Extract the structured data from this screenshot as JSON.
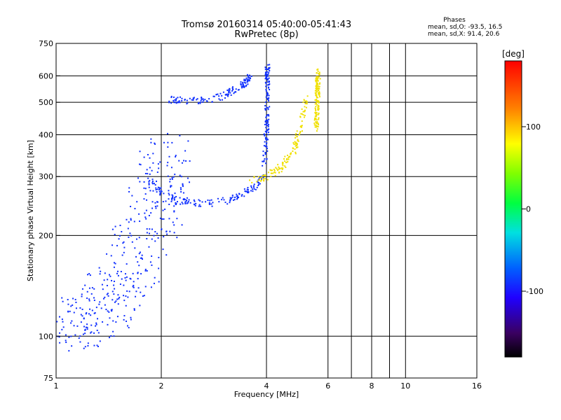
{
  "chart_data": {
    "type": "scatter",
    "title": "Tromsø 20160314 05:40:00-05:41:43",
    "subtitle": "RwPretec (8p)",
    "xlabel": "Frequency [MHz]",
    "ylabel": "Stationary phase Virtual Height [km]",
    "x_scale": "log",
    "y_scale": "log",
    "xlim": [
      1,
      16
    ],
    "ylim": [
      75,
      750
    ],
    "x_ticks": [
      1,
      2,
      4,
      6,
      8,
      10,
      16
    ],
    "x_tick_labels": [
      "1",
      "2",
      "4",
      "6",
      "8",
      "10",
      "16"
    ],
    "x_gridlines": [
      2,
      4,
      6,
      7,
      8,
      9,
      10
    ],
    "y_ticks": [
      75,
      100,
      200,
      300,
      400,
      500,
      600,
      750
    ],
    "y_tick_labels": [
      "75",
      "100",
      "200",
      "300",
      "400",
      "500",
      "600",
      "750"
    ],
    "y_gridlines": [
      100,
      200,
      300,
      400,
      500,
      600
    ],
    "grid": true,
    "phases_box": {
      "title": "Phases",
      "line_o": "mean, sd,O: -93.5, 16.5",
      "line_x": "mean, sd,X:  91.4, 20.6"
    },
    "colorbar": {
      "label": "[deg]",
      "range": [
        -180,
        180
      ],
      "ticks": [
        100,
        0,
        -100
      ],
      "tick_labels": [
        "100",
        "0",
        "-100"
      ],
      "colormap": "rainbow"
    },
    "series": [
      {
        "phase": "O (blue)",
        "color": "#1030ff",
        "clusters": [
          {
            "desc": "O-mode F trace, lower branch",
            "x": [
              1.85,
              2.0,
              2.2,
              2.5,
              2.8,
              3.1,
              3.4,
              3.7,
              3.9
            ],
            "y": [
              290,
              270,
              255,
              250,
              250,
              255,
              265,
              280,
              300
            ]
          },
          {
            "desc": "O-mode cusp near foF2",
            "x": [
              3.95,
              4.0,
              4.02,
              4.03,
              4.03
            ],
            "y": [
              330,
              400,
              480,
              580,
              640
            ]
          },
          {
            "desc": "O-mode upper branch",
            "x": [
              2.1,
              2.5,
              3.0,
              3.4,
              3.6
            ],
            "y": [
              510,
              505,
              520,
              560,
              600
            ]
          },
          {
            "desc": "Diffuse spread / E-region cloud",
            "x": [
              1.0,
              1.2,
              1.4,
              1.6,
              1.8,
              2.0,
              2.1
            ],
            "y": [
              105,
              110,
              125,
              150,
              200,
              280,
              350
            ]
          }
        ]
      },
      {
        "phase": "X (yellow)",
        "color": "#f0e000",
        "clusters": [
          {
            "desc": "X-mode F trace",
            "x": [
              3.6,
              4.0,
              4.4,
              4.8,
              5.0,
              5.2
            ],
            "y": [
              290,
              300,
              320,
              360,
              420,
              520
            ]
          },
          {
            "desc": "X-mode cusp near fxF2",
            "x": [
              5.55,
              5.6,
              5.62
            ],
            "y": [
              420,
              520,
              620
            ]
          }
        ]
      }
    ]
  }
}
